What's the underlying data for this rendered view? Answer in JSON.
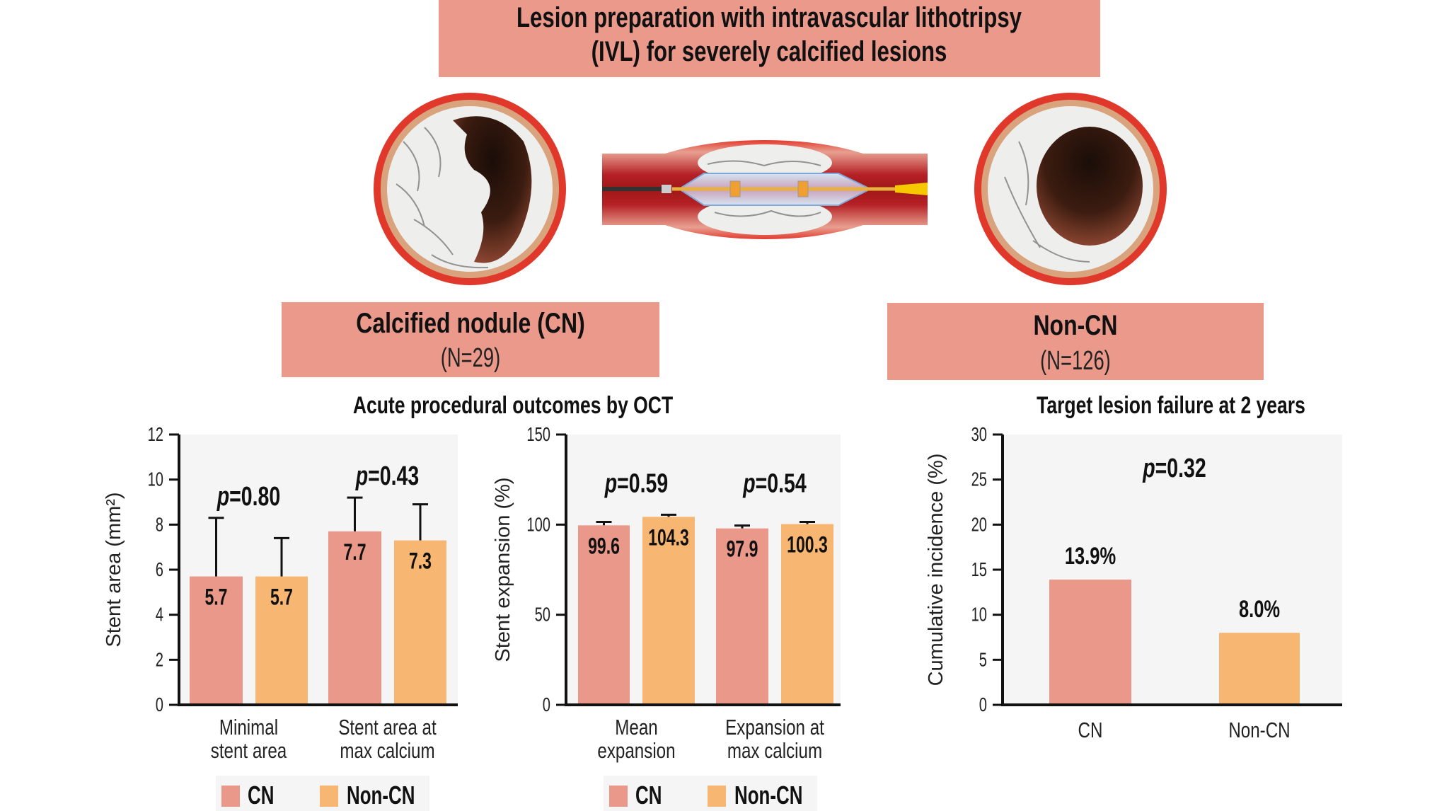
{
  "header": {
    "title_line1": "Lesion preparation with intravascular lithotripsy",
    "title_line2": "(IVL) for severely calcified lesions"
  },
  "groups": {
    "cn": {
      "name": "Calcified nodule (CN)",
      "n": "(N=29)"
    },
    "noncn": {
      "name": "Non-CN",
      "n": "(N=126)"
    }
  },
  "illustrations": {
    "left": "cn-vessel-cross-section",
    "center": "ivl-balloon-catheter-in-vessel",
    "right": "expanded-vessel-cross-section"
  },
  "section_titles": {
    "acute": "Acute procedural outcomes by OCT",
    "tlf": "Target lesion failure at 2 years"
  },
  "colors": {
    "cn": "#EA988A",
    "noncn": "#F7B672",
    "plot_bg": "#F5F5F5",
    "box": "#EA998B"
  },
  "legend": {
    "cn": "CN",
    "noncn": "Non-CN"
  },
  "chart_data": [
    {
      "type": "bar",
      "title": "",
      "ylabel": "Stent area (mm²)",
      "ylim": [
        0,
        12
      ],
      "yticks": [
        "0",
        "2",
        "4",
        "6",
        "8",
        "10",
        "12"
      ],
      "categories": [
        [
          "Minimal",
          "stent area"
        ],
        [
          "Stent area at",
          "max calcium"
        ]
      ],
      "series": [
        {
          "name": "CN",
          "values": [
            5.7,
            7.7
          ],
          "labels": [
            "5.7",
            "7.7"
          ],
          "error_top": [
            8.3,
            9.2
          ]
        },
        {
          "name": "Non-CN",
          "values": [
            5.7,
            7.3
          ],
          "labels": [
            "5.7",
            "7.3"
          ],
          "error_top": [
            7.4,
            8.9
          ]
        }
      ],
      "p_values": [
        "=0.80",
        "=0.43"
      ],
      "p_label": "p",
      "legend_position": "bottom"
    },
    {
      "type": "bar",
      "title": "",
      "ylabel": "Stent expansion (%)",
      "ylim": [
        0,
        150
      ],
      "yticks": [
        "0",
        "50",
        "100",
        "150"
      ],
      "categories": [
        [
          "Mean",
          "expansion"
        ],
        [
          "Expansion at",
          "max calcium"
        ]
      ],
      "series": [
        {
          "name": "CN",
          "values": [
            99.6,
            97.9
          ],
          "labels": [
            "99.6",
            "97.9"
          ],
          "error_top": [
            101.5,
            99.5
          ]
        },
        {
          "name": "Non-CN",
          "values": [
            104.3,
            100.3
          ],
          "labels": [
            "104.3",
            "100.3"
          ],
          "error_top": [
            105.5,
            101.5
          ]
        }
      ],
      "p_values": [
        "=0.59",
        "=0.54"
      ],
      "p_label": "p",
      "legend_position": "bottom"
    },
    {
      "type": "bar",
      "title": "Target lesion failure at 2 years",
      "ylabel": "Cumulative incidence  (%)",
      "ylim": [
        0,
        30
      ],
      "yticks": [
        "0",
        "5",
        "10",
        "15",
        "20",
        "25",
        "30"
      ],
      "categories": [
        "CN",
        "Non-CN"
      ],
      "values": [
        13.9,
        8.0
      ],
      "labels": [
        "13.9%",
        "8.0%"
      ],
      "p_values": [
        "=0.32"
      ],
      "p_label": "p"
    }
  ]
}
